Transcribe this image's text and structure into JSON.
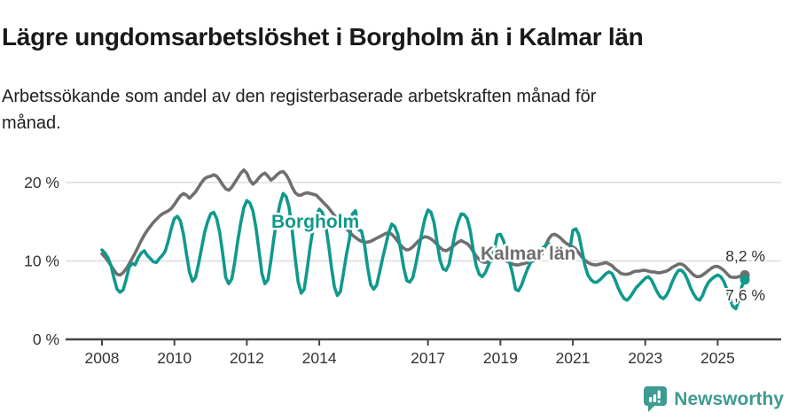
{
  "header": {
    "title": "Lägre ungdomsarbetslöshet i Borgholm än i Kalmar län",
    "subtitle": "Arbetssökande som andel av den registerbaserade arbetskraften månad för\nmånad."
  },
  "chart_data": {
    "type": "line",
    "title": "Lägre ungdomsarbetslöshet i Borgholm än i Kalmar län",
    "subtitle": "Arbetssökande som andel av den registerbaserade arbetskraften månad för månad.",
    "x_unit": "monthly, Jan 2008 – Oct 2025",
    "ylim": [
      0,
      23
    ],
    "grid": "horizontal",
    "y_ticks": [
      {
        "value": 0,
        "label": "0 %"
      },
      {
        "value": 10,
        "label": "10 %"
      },
      {
        "value": 20,
        "label": "20 %"
      }
    ],
    "x_ticks": [
      {
        "value": 2008,
        "label": "2008"
      },
      {
        "value": 2010,
        "label": "2010"
      },
      {
        "value": 2012,
        "label": "2012"
      },
      {
        "value": 2014,
        "label": "2014"
      },
      {
        "value": 2017,
        "label": "2017"
      },
      {
        "value": 2019,
        "label": "2019"
      },
      {
        "value": 2021,
        "label": "2021"
      },
      {
        "value": 2023,
        "label": "2023"
      },
      {
        "value": 2025,
        "label": "2025"
      }
    ],
    "series": [
      {
        "name": "Borgholm",
        "color": "#10998c",
        "end_label": "7,6 %",
        "last_value": 7.6,
        "values_by_year": {
          "2008": [
            11.4,
            11.0,
            10.4,
            9.4,
            7.8,
            6.4,
            6.0,
            6.3,
            7.6,
            9.2,
            9.7,
            9.5
          ],
          "2009": [
            10.4,
            11.0,
            11.3,
            10.7,
            10.3,
            9.9,
            9.8,
            10.3,
            10.7,
            11.3,
            12.6,
            14.2
          ],
          "2010": [
            15.4,
            15.7,
            15.1,
            13.4,
            10.9,
            8.6,
            7.4,
            7.9,
            9.6,
            11.6,
            13.6,
            15.0
          ],
          "2011": [
            16.0,
            16.2,
            15.4,
            13.6,
            10.9,
            7.9,
            7.1,
            7.7,
            9.9,
            12.6,
            14.9,
            16.8
          ],
          "2012": [
            17.7,
            17.4,
            16.4,
            14.3,
            11.4,
            8.4,
            7.1,
            7.6,
            10.1,
            13.0,
            15.4,
            17.3
          ],
          "2013": [
            18.6,
            18.2,
            16.8,
            13.9,
            10.4,
            7.3,
            5.9,
            6.4,
            9.0,
            11.9,
            14.3,
            15.8
          ],
          "2014": [
            16.6,
            16.2,
            14.9,
            12.3,
            9.3,
            6.7,
            5.6,
            6.1,
            8.4,
            10.8,
            12.8,
            16.0
          ],
          "2015": [
            16.4,
            14.0,
            13.8,
            12.0,
            9.2,
            7.0,
            6.4,
            6.9,
            8.6,
            10.4,
            12.0,
            13.6
          ],
          "2016": [
            14.7,
            14.4,
            13.4,
            11.4,
            9.1,
            7.5,
            7.3,
            7.9,
            9.6,
            11.6,
            13.6,
            15.4
          ],
          "2017": [
            16.5,
            16.2,
            14.9,
            12.4,
            10.1,
            9.0,
            8.8,
            9.6,
            11.6,
            13.6,
            15.0,
            16.0
          ],
          "2018": [
            15.9,
            15.4,
            13.9,
            11.4,
            9.4,
            8.3,
            8.0,
            8.5,
            9.4,
            10.4,
            11.4,
            13.3
          ],
          "2019": [
            13.4,
            12.6,
            11.4,
            9.9,
            8.4,
            6.4,
            6.2,
            6.9,
            8.0,
            9.0,
            9.8,
            10.4
          ],
          "2020": [
            11.0,
            11.4,
            11.6,
            12.0,
            12.2,
            11.9,
            11.4,
            11.0,
            10.6,
            10.4,
            10.6,
            11.4
          ],
          "2021": [
            13.9,
            14.1,
            13.3,
            11.4,
            9.4,
            8.2,
            7.6,
            7.3,
            7.3,
            7.6,
            8.0,
            8.4
          ],
          "2022": [
            8.6,
            8.4,
            7.6,
            6.6,
            5.8,
            5.2,
            5.0,
            5.4,
            6.0,
            6.6,
            7.0,
            7.4
          ],
          "2023": [
            7.8,
            8.0,
            7.6,
            6.8,
            6.0,
            5.4,
            5.2,
            5.6,
            6.4,
            7.4,
            8.2,
            8.8
          ],
          "2024": [
            8.8,
            8.4,
            7.6,
            6.6,
            5.8,
            5.2,
            5.0,
            5.6,
            6.6,
            7.3,
            7.7,
            8.0
          ],
          "2025": [
            8.2,
            8.0,
            7.4,
            6.4,
            5.2,
            4.2,
            3.9,
            5.0,
            6.8,
            7.6
          ]
        }
      },
      {
        "name": "Kalmar län",
        "color": "#6f6f6f",
        "end_label": "8,2 %",
        "last_value": 8.2,
        "values_by_year": {
          "2008": [
            10.9,
            10.5,
            10.0,
            9.4,
            8.8,
            8.3,
            8.2,
            8.5,
            9.0,
            9.6,
            10.3,
            11.0
          ],
          "2009": [
            11.8,
            12.6,
            13.3,
            13.9,
            14.4,
            14.9,
            15.3,
            15.7,
            16.0,
            16.2,
            16.4,
            16.7
          ],
          "2010": [
            17.2,
            17.8,
            18.3,
            18.6,
            18.4,
            18.0,
            18.4,
            18.8,
            19.4,
            20.0,
            20.5,
            20.7
          ],
          "2011": [
            20.8,
            21.0,
            20.8,
            20.3,
            19.7,
            19.2,
            19.0,
            19.4,
            20.0,
            20.6,
            21.2,
            21.6
          ],
          "2012": [
            21.2,
            20.3,
            19.8,
            20.1,
            20.6,
            21.0,
            21.2,
            20.8,
            20.3,
            20.6,
            21.0,
            21.3
          ],
          "2013": [
            21.4,
            21.0,
            20.3,
            19.4,
            18.7,
            18.4,
            18.4,
            18.6,
            18.7,
            18.6,
            18.5,
            18.4
          ],
          "2014": [
            18.0,
            17.6,
            17.2,
            16.8,
            16.3,
            15.8,
            15.3,
            14.9,
            14.5,
            14.1,
            13.7,
            13.3
          ],
          "2015": [
            13.0,
            12.7,
            12.5,
            12.4,
            12.4,
            12.5,
            12.7,
            12.9,
            13.1,
            13.3,
            13.5,
            13.6
          ],
          "2016": [
            13.4,
            13.0,
            12.5,
            12.0,
            11.6,
            11.4,
            11.5,
            11.8,
            12.2,
            12.6,
            12.9,
            13.1
          ],
          "2017": [
            13.0,
            12.8,
            12.5,
            12.1,
            11.7,
            11.4,
            11.3,
            11.5,
            11.8,
            12.1,
            12.4,
            12.6
          ],
          "2018": [
            12.4,
            12.2,
            11.8,
            11.2,
            10.6,
            10.2,
            9.9,
            9.8,
            9.9,
            10.0,
            10.2,
            10.3
          ],
          "2019": [
            10.3,
            10.2,
            10.0,
            9.8,
            9.6,
            9.5,
            9.5,
            9.6,
            9.7,
            9.8,
            9.9,
            10.0
          ],
          "2020": [
            10.2,
            10.4,
            11.0,
            12.0,
            12.8,
            13.3,
            13.4,
            13.2,
            12.9,
            12.5,
            12.2,
            12.0
          ],
          "2021": [
            11.8,
            11.5,
            11.0,
            10.5,
            10.1,
            9.8,
            9.6,
            9.5,
            9.5,
            9.6,
            9.7,
            9.8
          ],
          "2022": [
            9.6,
            9.4,
            9.0,
            8.7,
            8.4,
            8.3,
            8.3,
            8.4,
            8.6,
            8.7,
            8.7,
            8.8
          ],
          "2023": [
            8.8,
            8.7,
            8.6,
            8.6,
            8.5,
            8.5,
            8.6,
            8.7,
            8.9,
            9.2,
            9.4,
            9.6
          ],
          "2024": [
            9.6,
            9.4,
            9.0,
            8.6,
            8.2,
            8.0,
            8.0,
            8.2,
            8.5,
            8.8,
            9.1,
            9.3
          ],
          "2025": [
            9.3,
            9.1,
            8.8,
            8.4,
            8.0,
            7.9,
            7.9,
            8.0,
            8.1,
            8.2
          ]
        }
      }
    ],
    "colors": {
      "grid": "#dbdbdb",
      "axis": "#454545",
      "tick_text": "#333333",
      "value_label_text": "#333333"
    },
    "legend_position": "inline-labels"
  },
  "footer": {
    "brand": "Newsworthy",
    "brand_color": "#3f9a91"
  }
}
